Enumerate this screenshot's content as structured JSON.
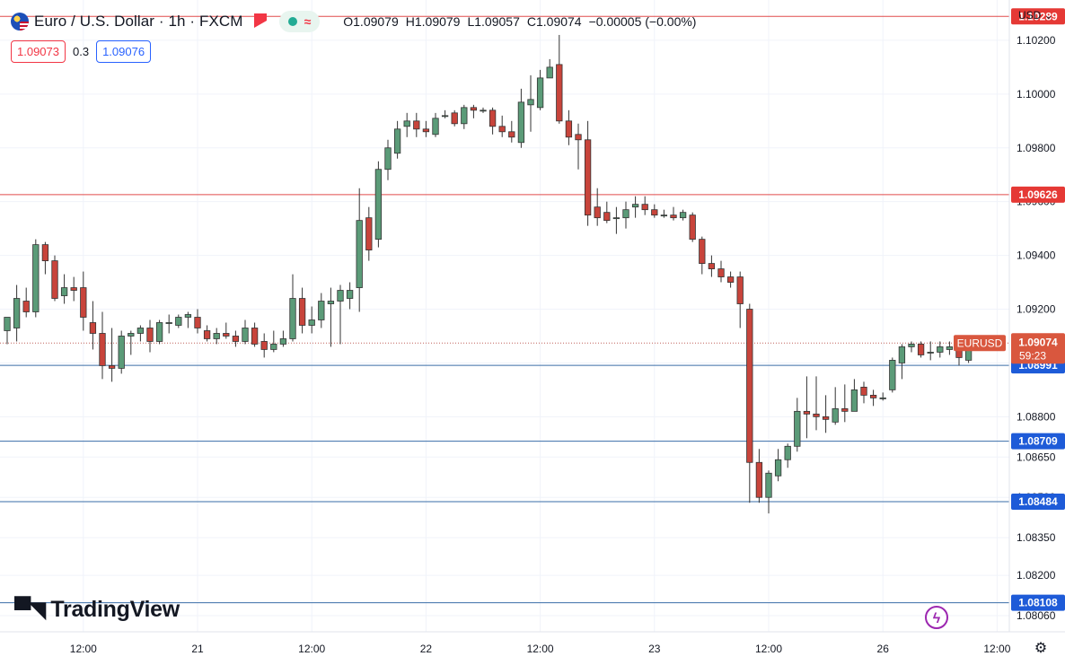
{
  "header": {
    "title": "Euro / U.S. Dollar · 1h · FXCM",
    "ohlc": {
      "open": "O1.09079",
      "high": "H1.09079",
      "low": "L1.09057",
      "close": "C1.09074",
      "change": "−0.00005 (−0.00%)"
    }
  },
  "quote": {
    "sell": "1.09073",
    "spread": "0.3",
    "buy": "1.09076"
  },
  "branding": {
    "logo_text": "TradingView"
  },
  "axis": {
    "currency_label": "USD"
  },
  "colors": {
    "up": "#5b9b78",
    "down": "#c8443b",
    "red_line": "#e04b4b",
    "blue_line": "#3a6ea8",
    "blue_tag": "#1e5bd8",
    "red_tag": "#e53935",
    "last_tag": "#d9573e"
  },
  "icons": {
    "settings": "gear-icon",
    "alert": "flag-icon",
    "indicator": "lightning-icon"
  },
  "chart_data": {
    "type": "candlestick",
    "symbol": "EURUSD",
    "countdown": "59:23",
    "y_ticks": [
      1.0806,
      1.0821,
      1.0835,
      1.085,
      1.0865,
      1.088,
      1.09,
      1.092,
      1.094,
      1.096,
      1.098,
      1.1,
      1.102
    ],
    "y_tick_labels": [
      "1.08060",
      "1.08200",
      "1.08350",
      "1.08500",
      "1.08650",
      "1.08800",
      "1.09000",
      "1.09200",
      "1.09400",
      "1.09600",
      "1.09800",
      "1.10000",
      "1.10200"
    ],
    "ylim": [
      1.08,
      1.1035
    ],
    "x_tick_labels": [
      "12:00",
      "21",
      "12:00",
      "22",
      "12:00",
      "23",
      "12:00",
      "26",
      "12:00"
    ],
    "x_tick_index": [
      8,
      20,
      32,
      44,
      56,
      68,
      80,
      92,
      104
    ],
    "bar_count_visible": 107,
    "horizontal_levels": [
      {
        "value": 1.10289,
        "label": "1.10289",
        "kind": "red"
      },
      {
        "value": 1.09626,
        "label": "1.09626",
        "kind": "red"
      },
      {
        "value": 1.08991,
        "label": "1.08991",
        "kind": "blue"
      },
      {
        "value": 1.08709,
        "label": "1.08709",
        "kind": "blue"
      },
      {
        "value": 1.08484,
        "label": "1.08484",
        "kind": "blue"
      },
      {
        "value": 1.08108,
        "label": "1.08108",
        "kind": "blue"
      }
    ],
    "last_price": {
      "value": 1.09074,
      "label": "1.09074"
    },
    "candles": [
      {
        "o": 1.0912,
        "h": 1.0916,
        "l": 1.0907,
        "c": 1.0917
      },
      {
        "o": 1.0913,
        "h": 1.0929,
        "l": 1.0908,
        "c": 1.0924
      },
      {
        "o": 1.0923,
        "h": 1.0928,
        "l": 1.0917,
        "c": 1.0919
      },
      {
        "o": 1.0919,
        "h": 1.0946,
        "l": 1.0917,
        "c": 1.0944
      },
      {
        "o": 1.0944,
        "h": 1.0945,
        "l": 1.0933,
        "c": 1.0938
      },
      {
        "o": 1.0938,
        "h": 1.094,
        "l": 1.0923,
        "c": 1.0924
      },
      {
        "o": 1.0925,
        "h": 1.0933,
        "l": 1.0922,
        "c": 1.0928
      },
      {
        "o": 1.0928,
        "h": 1.0932,
        "l": 1.0923,
        "c": 1.0927
      },
      {
        "o": 1.0928,
        "h": 1.0934,
        "l": 1.0912,
        "c": 1.0917
      },
      {
        "o": 1.0915,
        "h": 1.0923,
        "l": 1.0905,
        "c": 1.0911
      },
      {
        "o": 1.0911,
        "h": 1.0919,
        "l": 1.0894,
        "c": 1.0899
      },
      {
        "o": 1.0899,
        "h": 1.0913,
        "l": 1.0893,
        "c": 1.0898
      },
      {
        "o": 1.0898,
        "h": 1.0912,
        "l": 1.0896,
        "c": 1.091
      },
      {
        "o": 1.091,
        "h": 1.0912,
        "l": 1.0903,
        "c": 1.0911
      },
      {
        "o": 1.0911,
        "h": 1.0914,
        "l": 1.0908,
        "c": 1.0913
      },
      {
        "o": 1.0913,
        "h": 1.0916,
        "l": 1.0904,
        "c": 1.0908
      },
      {
        "o": 1.0908,
        "h": 1.0916,
        "l": 1.0907,
        "c": 1.0915
      },
      {
        "o": 1.0915,
        "h": 1.0918,
        "l": 1.0911,
        "c": 1.0915
      },
      {
        "o": 1.0914,
        "h": 1.0918,
        "l": 1.0913,
        "c": 1.0917
      },
      {
        "o": 1.0917,
        "h": 1.0919,
        "l": 1.0913,
        "c": 1.0918
      },
      {
        "o": 1.0917,
        "h": 1.092,
        "l": 1.0911,
        "c": 1.0913
      },
      {
        "o": 1.0912,
        "h": 1.0914,
        "l": 1.0908,
        "c": 1.0909
      },
      {
        "o": 1.0909,
        "h": 1.0913,
        "l": 1.0907,
        "c": 1.0911
      },
      {
        "o": 1.0911,
        "h": 1.0915,
        "l": 1.0909,
        "c": 1.091
      },
      {
        "o": 1.091,
        "h": 1.0912,
        "l": 1.0906,
        "c": 1.0908
      },
      {
        "o": 1.0908,
        "h": 1.0916,
        "l": 1.0907,
        "c": 1.0913
      },
      {
        "o": 1.0913,
        "h": 1.0915,
        "l": 1.0906,
        "c": 1.0907
      },
      {
        "o": 1.0908,
        "h": 1.0911,
        "l": 1.0902,
        "c": 1.0905
      },
      {
        "o": 1.0905,
        "h": 1.0912,
        "l": 1.0904,
        "c": 1.0907
      },
      {
        "o": 1.0907,
        "h": 1.0912,
        "l": 1.0906,
        "c": 1.0909
      },
      {
        "o": 1.0909,
        "h": 1.0933,
        "l": 1.0908,
        "c": 1.0924
      },
      {
        "o": 1.0924,
        "h": 1.0928,
        "l": 1.0911,
        "c": 1.0914
      },
      {
        "o": 1.0914,
        "h": 1.0921,
        "l": 1.0911,
        "c": 1.0916
      },
      {
        "o": 1.0916,
        "h": 1.0926,
        "l": 1.0913,
        "c": 1.0923
      },
      {
        "o": 1.0922,
        "h": 1.0928,
        "l": 1.0906,
        "c": 1.0923
      },
      {
        "o": 1.0923,
        "h": 1.0929,
        "l": 1.0907,
        "c": 1.0927
      },
      {
        "o": 1.0924,
        "h": 1.093,
        "l": 1.092,
        "c": 1.0927
      },
      {
        "o": 1.0928,
        "h": 1.0965,
        "l": 1.0919,
        "c": 1.0953
      },
      {
        "o": 1.0954,
        "h": 1.0958,
        "l": 1.0938,
        "c": 1.0942
      },
      {
        "o": 1.0946,
        "h": 1.0975,
        "l": 1.0943,
        "c": 1.0972
      },
      {
        "o": 1.0972,
        "h": 1.0983,
        "l": 1.0968,
        "c": 1.098
      },
      {
        "o": 1.0978,
        "h": 1.099,
        "l": 1.0976,
        "c": 1.0987
      },
      {
        "o": 1.0988,
        "h": 1.0993,
        "l": 1.0984,
        "c": 1.099
      },
      {
        "o": 1.099,
        "h": 1.0993,
        "l": 1.0984,
        "c": 1.0987
      },
      {
        "o": 1.0987,
        "h": 1.099,
        "l": 1.0984,
        "c": 1.0986
      },
      {
        "o": 1.0985,
        "h": 1.0993,
        "l": 1.0984,
        "c": 1.0991
      },
      {
        "o": 1.0992,
        "h": 1.0994,
        "l": 1.0991,
        "c": 1.0992
      },
      {
        "o": 1.0993,
        "h": 1.0994,
        "l": 1.0988,
        "c": 1.0989
      },
      {
        "o": 1.0989,
        "h": 1.0996,
        "l": 1.0987,
        "c": 1.0995
      },
      {
        "o": 1.0995,
        "h": 1.0996,
        "l": 1.0991,
        "c": 1.0994
      },
      {
        "o": 1.0994,
        "h": 1.0995,
        "l": 1.0993,
        "c": 1.0994
      },
      {
        "o": 1.0994,
        "h": 1.0995,
        "l": 1.0985,
        "c": 1.0988
      },
      {
        "o": 1.0988,
        "h": 1.0992,
        "l": 1.0984,
        "c": 1.0986
      },
      {
        "o": 1.0986,
        "h": 1.099,
        "l": 1.0982,
        "c": 1.0984
      },
      {
        "o": 1.0982,
        "h": 1.1002,
        "l": 1.098,
        "c": 1.0997
      },
      {
        "o": 1.0996,
        "h": 1.1007,
        "l": 1.0986,
        "c": 1.0998
      },
      {
        "o": 1.0995,
        "h": 1.1009,
        "l": 1.0994,
        "c": 1.1006
      },
      {
        "o": 1.1006,
        "h": 1.1013,
        "l": 1.1006,
        "c": 1.101
      },
      {
        "o": 1.1011,
        "h": 1.1022,
        "l": 1.0989,
        "c": 1.099
      },
      {
        "o": 1.099,
        "h": 1.0994,
        "l": 1.0981,
        "c": 1.0984
      },
      {
        "o": 1.0985,
        "h": 1.0989,
        "l": 1.0972,
        "c": 1.0983
      },
      {
        "o": 1.0983,
        "h": 1.099,
        "l": 1.0951,
        "c": 1.0955
      },
      {
        "o": 1.0958,
        "h": 1.0965,
        "l": 1.0951,
        "c": 1.0954
      },
      {
        "o": 1.0956,
        "h": 1.096,
        "l": 1.0952,
        "c": 1.0953
      },
      {
        "o": 1.0954,
        "h": 1.0958,
        "l": 1.0948,
        "c": 1.0954
      },
      {
        "o": 1.0954,
        "h": 1.096,
        "l": 1.095,
        "c": 1.0957
      },
      {
        "o": 1.0958,
        "h": 1.0962,
        "l": 1.0954,
        "c": 1.0959
      },
      {
        "o": 1.0959,
        "h": 1.0962,
        "l": 1.0955,
        "c": 1.0957
      },
      {
        "o": 1.0957,
        "h": 1.0959,
        "l": 1.0954,
        "c": 1.0955
      },
      {
        "o": 1.0955,
        "h": 1.0957,
        "l": 1.0954,
        "c": 1.0955
      },
      {
        "o": 1.0955,
        "h": 1.0958,
        "l": 1.0953,
        "c": 1.0954
      },
      {
        "o": 1.0954,
        "h": 1.0957,
        "l": 1.0953,
        "c": 1.0956
      },
      {
        "o": 1.0955,
        "h": 1.0956,
        "l": 1.0945,
        "c": 1.0946
      },
      {
        "o": 1.0946,
        "h": 1.0947,
        "l": 1.0933,
        "c": 1.0937
      },
      {
        "o": 1.0937,
        "h": 1.094,
        "l": 1.0932,
        "c": 1.0935
      },
      {
        "o": 1.0935,
        "h": 1.0938,
        "l": 1.093,
        "c": 1.0932
      },
      {
        "o": 1.0932,
        "h": 1.0934,
        "l": 1.0928,
        "c": 1.093
      },
      {
        "o": 1.0932,
        "h": 1.0934,
        "l": 1.0913,
        "c": 1.0922
      },
      {
        "o": 1.092,
        "h": 1.0922,
        "l": 1.0848,
        "c": 1.0863
      },
      {
        "o": 1.0863,
        "h": 1.0868,
        "l": 1.0848,
        "c": 1.085
      },
      {
        "o": 1.085,
        "h": 1.086,
        "l": 1.0844,
        "c": 1.0859
      },
      {
        "o": 1.0858,
        "h": 1.0868,
        "l": 1.0856,
        "c": 1.0864
      },
      {
        "o": 1.0864,
        "h": 1.087,
        "l": 1.0861,
        "c": 1.0869
      },
      {
        "o": 1.0869,
        "h": 1.0887,
        "l": 1.0867,
        "c": 1.0882
      },
      {
        "o": 1.0882,
        "h": 1.0895,
        "l": 1.0872,
        "c": 1.0881
      },
      {
        "o": 1.0881,
        "h": 1.0895,
        "l": 1.0875,
        "c": 1.088
      },
      {
        "o": 1.088,
        "h": 1.0888,
        "l": 1.0874,
        "c": 1.0879
      },
      {
        "o": 1.0878,
        "h": 1.0891,
        "l": 1.0877,
        "c": 1.0883
      },
      {
        "o": 1.0883,
        "h": 1.0892,
        "l": 1.0878,
        "c": 1.0882
      },
      {
        "o": 1.0882,
        "h": 1.0894,
        "l": 1.0882,
        "c": 1.089
      },
      {
        "o": 1.0891,
        "h": 1.0893,
        "l": 1.0885,
        "c": 1.0888
      },
      {
        "o": 1.0888,
        "h": 1.089,
        "l": 1.0884,
        "c": 1.0887
      },
      {
        "o": 1.0887,
        "h": 1.0889,
        "l": 1.0886,
        "c": 1.0887
      },
      {
        "o": 1.089,
        "h": 1.0902,
        "l": 1.0889,
        "c": 1.0901
      },
      {
        "o": 1.09,
        "h": 1.0907,
        "l": 1.0894,
        "c": 1.0906
      },
      {
        "o": 1.0906,
        "h": 1.0908,
        "l": 1.0904,
        "c": 1.0907
      },
      {
        "o": 1.0907,
        "h": 1.0908,
        "l": 1.0902,
        "c": 1.0903
      },
      {
        "o": 1.0904,
        "h": 1.0908,
        "l": 1.0901,
        "c": 1.0904
      },
      {
        "o": 1.0904,
        "h": 1.0908,
        "l": 1.0902,
        "c": 1.0906
      },
      {
        "o": 1.0905,
        "h": 1.0908,
        "l": 1.0903,
        "c": 1.0906
      },
      {
        "o": 1.0906,
        "h": 1.0909,
        "l": 1.0899,
        "c": 1.0902
      },
      {
        "o": 1.0901,
        "h": 1.0909,
        "l": 1.09,
        "c": 1.0908
      },
      {
        "o": 1.0908,
        "h": 1.0908,
        "l": 1.0906,
        "c": 1.0907
      }
    ]
  }
}
